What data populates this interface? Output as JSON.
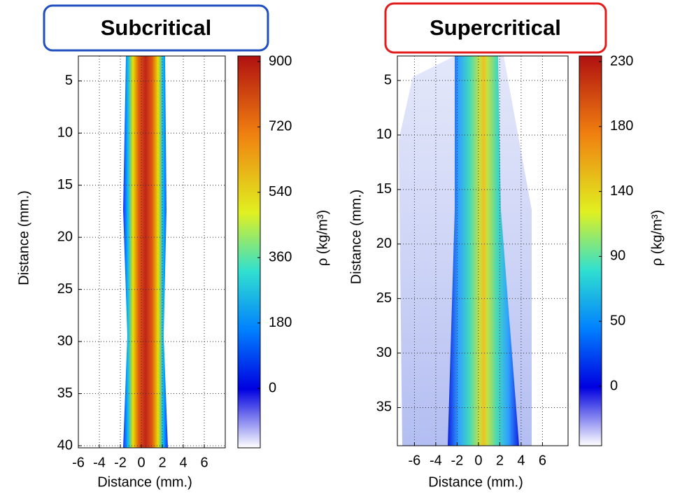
{
  "chart_data": [
    {
      "type": "heatmap",
      "title": "Subcritical",
      "title_color": "#1f4fbf",
      "xlabel": "Distance (mm.)",
      "ylabel": "Distance (mm.)",
      "colorbar_label": "ρ (kg/m³)",
      "xlim": [
        -6,
        8
      ],
      "xticks": [
        -6,
        -4,
        -2,
        0,
        2,
        4,
        6
      ],
      "ylim": [
        2.6,
        40.2
      ],
      "yticks": [
        5,
        10,
        15,
        20,
        25,
        30,
        35,
        40
      ],
      "y_inverted": true,
      "colorbar_ticks": [
        0,
        180,
        360,
        540,
        720,
        900
      ],
      "grid": true
    },
    {
      "type": "heatmap",
      "title": "Supercritical",
      "title_color": "#e31b1b",
      "xlabel": "Distance (mm.)",
      "ylabel": "Distance (mm.)",
      "colorbar_label": "ρ (kg/m³)",
      "xlim": [
        -7.6,
        8.4
      ],
      "xticks": [
        -6,
        -4,
        -2,
        0,
        2,
        4,
        6
      ],
      "ylim": [
        2.75,
        38.5
      ],
      "yticks": [
        5,
        10,
        15,
        20,
        25,
        30,
        35
      ],
      "y_inverted": true,
      "colorbar_ticks": [
        0,
        50,
        90,
        140,
        180,
        230
      ],
      "grid": true
    }
  ]
}
